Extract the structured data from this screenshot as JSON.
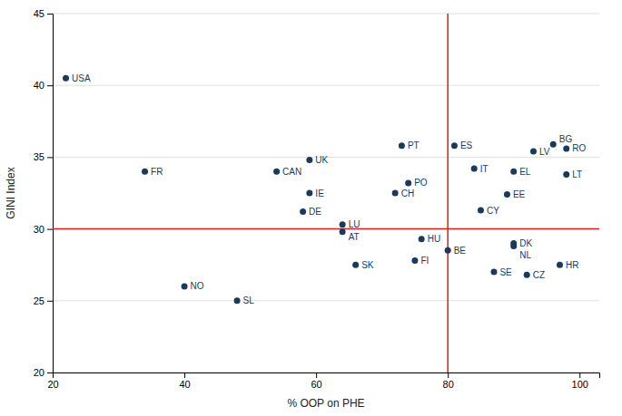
{
  "chart_data": {
    "type": "scatter",
    "xlabel": "% OOP on PHE",
    "ylabel": "GINI Index",
    "labels": [
      "USA",
      "FR",
      "NO",
      "SL",
      "CAN",
      "DE",
      "IE",
      "UK",
      "LU",
      "AT",
      "SK",
      "CH",
      "PO",
      "PT",
      "HU",
      "FI",
      "BE",
      "ES",
      "IT",
      "CY",
      "EE",
      "EL",
      "DK",
      "NL",
      "SE",
      "CZ",
      "LV",
      "BG",
      "RO",
      "LT",
      "HR"
    ],
    "x": [
      22,
      34,
      40,
      48,
      54,
      58,
      59,
      59,
      64,
      64,
      66,
      72,
      74,
      73,
      76,
      75,
      80,
      81,
      84,
      85,
      89,
      90,
      90,
      90,
      87,
      92,
      93,
      96,
      98,
      98,
      97
    ],
    "values": [
      40.5,
      34.0,
      26.0,
      25.0,
      34.0,
      31.2,
      32.5,
      34.8,
      30.3,
      29.8,
      27.5,
      32.5,
      33.2,
      35.8,
      29.3,
      27.8,
      28.5,
      35.8,
      34.2,
      31.3,
      32.4,
      34.0,
      29.0,
      28.8,
      27.0,
      26.8,
      35.4,
      35.9,
      35.6,
      33.8,
      27.5
    ],
    "color": "#1a3a5c",
    "xlim": [
      20,
      103
    ],
    "ylim": [
      20,
      45
    ],
    "xticks": [
      20,
      40,
      60,
      80,
      100
    ],
    "yticks": [
      20,
      25,
      30,
      35,
      40,
      45
    ],
    "grid": true,
    "reference_lines": [
      {
        "axis": "y",
        "value": 30,
        "color": "#cc2222"
      },
      {
        "axis": "x",
        "value": 80,
        "color": "#cc2222"
      }
    ]
  }
}
